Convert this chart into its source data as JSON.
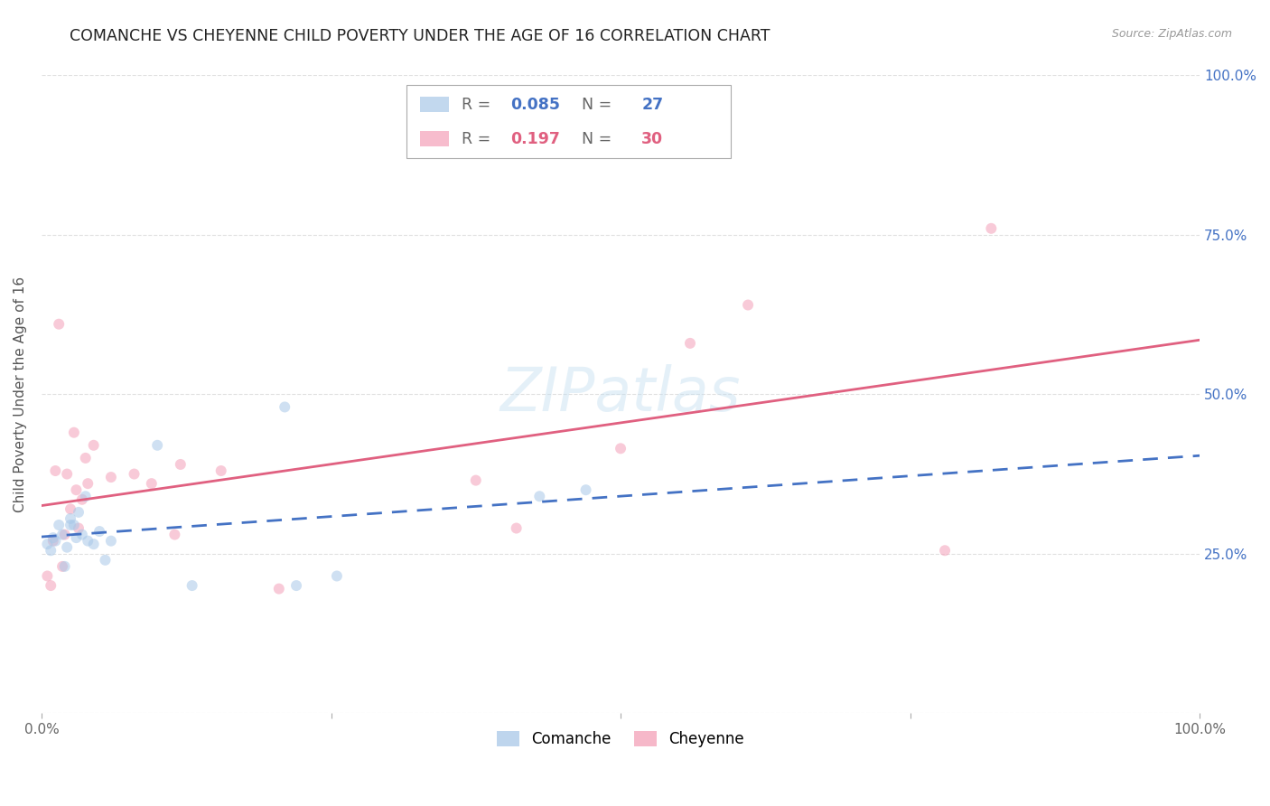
{
  "title": "COMANCHE VS CHEYENNE CHILD POVERTY UNDER THE AGE OF 16 CORRELATION CHART",
  "source": "Source: ZipAtlas.com",
  "ylabel": "Child Poverty Under the Age of 16",
  "watermark": "ZIPatlas",
  "comanche_R": 0.085,
  "comanche_N": 27,
  "cheyenne_R": 0.197,
  "cheyenne_N": 30,
  "comanche_color": "#a8c8e8",
  "cheyenne_color": "#f4a0b8",
  "comanche_line_color": "#4472c4",
  "cheyenne_line_color": "#e06080",
  "comanche_x": [
    0.005,
    0.008,
    0.01,
    0.012,
    0.015,
    0.018,
    0.02,
    0.022,
    0.025,
    0.025,
    0.028,
    0.03,
    0.032,
    0.035,
    0.038,
    0.04,
    0.045,
    0.05,
    0.055,
    0.06,
    0.1,
    0.13,
    0.21,
    0.22,
    0.255,
    0.43,
    0.47
  ],
  "comanche_y": [
    0.265,
    0.255,
    0.275,
    0.27,
    0.295,
    0.28,
    0.23,
    0.26,
    0.295,
    0.305,
    0.295,
    0.275,
    0.315,
    0.28,
    0.34,
    0.27,
    0.265,
    0.285,
    0.24,
    0.27,
    0.42,
    0.2,
    0.48,
    0.2,
    0.215,
    0.34,
    0.35
  ],
  "cheyenne_x": [
    0.005,
    0.008,
    0.01,
    0.012,
    0.015,
    0.018,
    0.02,
    0.022,
    0.025,
    0.028,
    0.03,
    0.032,
    0.035,
    0.038,
    0.04,
    0.045,
    0.06,
    0.08,
    0.095,
    0.115,
    0.12,
    0.155,
    0.205,
    0.375,
    0.41,
    0.5,
    0.56,
    0.61,
    0.78,
    0.82
  ],
  "cheyenne_y": [
    0.215,
    0.2,
    0.27,
    0.38,
    0.61,
    0.23,
    0.28,
    0.375,
    0.32,
    0.44,
    0.35,
    0.29,
    0.335,
    0.4,
    0.36,
    0.42,
    0.37,
    0.375,
    0.36,
    0.28,
    0.39,
    0.38,
    0.195,
    0.365,
    0.29,
    0.415,
    0.58,
    0.64,
    0.255,
    0.76
  ],
  "xlim": [
    0.0,
    1.0
  ],
  "ylim": [
    0.0,
    1.0
  ],
  "background_color": "#ffffff",
  "grid_color": "#e0e0e0",
  "marker_size": 75,
  "marker_alpha": 0.55,
  "title_fontsize": 12.5,
  "label_fontsize": 11,
  "tick_fontsize": 11,
  "right_tick_color": "#4472c4",
  "title_color": "#222222",
  "source_color": "#999999"
}
